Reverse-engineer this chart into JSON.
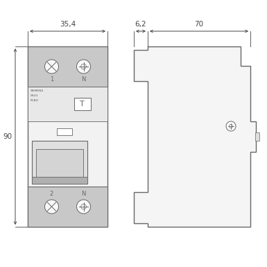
{
  "line_color": "#666666",
  "fill_body": "#f0f0f0",
  "fill_terminal": "#cccccc",
  "fill_handle": "#dddddd",
  "fill_handle_dark": "#bbbbbb",
  "dim_label_35": "35,4",
  "dim_label_90": "90",
  "dim_label_62": "6,2",
  "dim_label_70": "70",
  "text_siemens": "SIEMENS",
  "text_5su1": "5SU1",
  "text_rcbo": "RCBO",
  "text_1": "1",
  "text_N": "N",
  "text_2": "2",
  "text_T": "T"
}
